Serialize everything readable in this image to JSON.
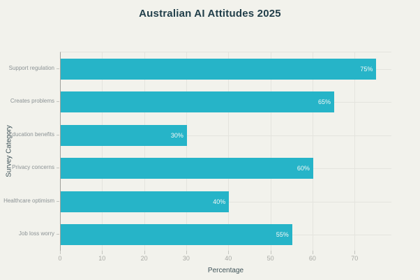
{
  "chart_data": {
    "type": "bar",
    "orientation": "horizontal",
    "title": "Australian AI Attitudes 2025",
    "xlabel": "Percentage",
    "ylabel": "Survey Category",
    "categories": [
      "Support regulation",
      "Creates problems",
      "Education benefits",
      "Privacy concerns",
      "Healthcare optimism",
      "Job loss worry"
    ],
    "values": [
      75,
      65,
      30,
      60,
      40,
      55
    ],
    "value_labels": [
      "75%",
      "65%",
      "30%",
      "60%",
      "40%",
      "55%"
    ],
    "x_ticks": [
      0,
      10,
      20,
      30,
      40,
      50,
      60,
      70
    ],
    "xlim": [
      0,
      78.75
    ],
    "grid": true,
    "legend": "none",
    "colors": {
      "background": "#f2f2ec",
      "bar": "#26b4c8",
      "grid": "#e4e4de",
      "axis_line": "#a0a19b",
      "tick_mark": "#c4c5bf",
      "tick_label": "#a8a9a4",
      "category_label": "#8b9294",
      "title": "#223f4a",
      "axis_title": "#3e5258",
      "value_label": "#f4f8f6"
    }
  }
}
